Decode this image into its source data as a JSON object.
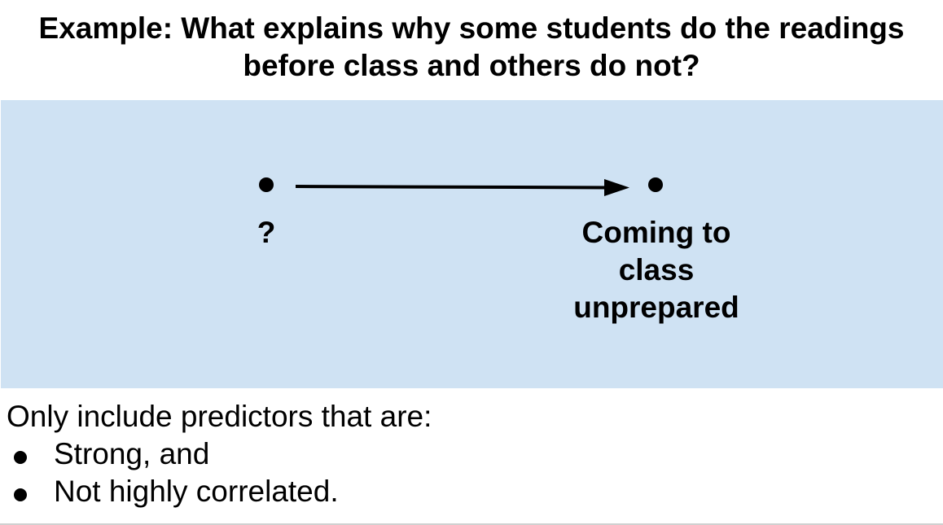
{
  "title": {
    "line1": "Example: What explains why some students do the readings",
    "line2": "before class and others do not?"
  },
  "diagram": {
    "cause_label": "?",
    "outcome_label_lines": [
      "Coming to",
      "class",
      "unprepared"
    ],
    "panel_color": "#cfe2f3"
  },
  "notes": {
    "intro": "Only include predictors that are:",
    "bullets": [
      "Strong, and",
      "Not highly correlated."
    ]
  }
}
